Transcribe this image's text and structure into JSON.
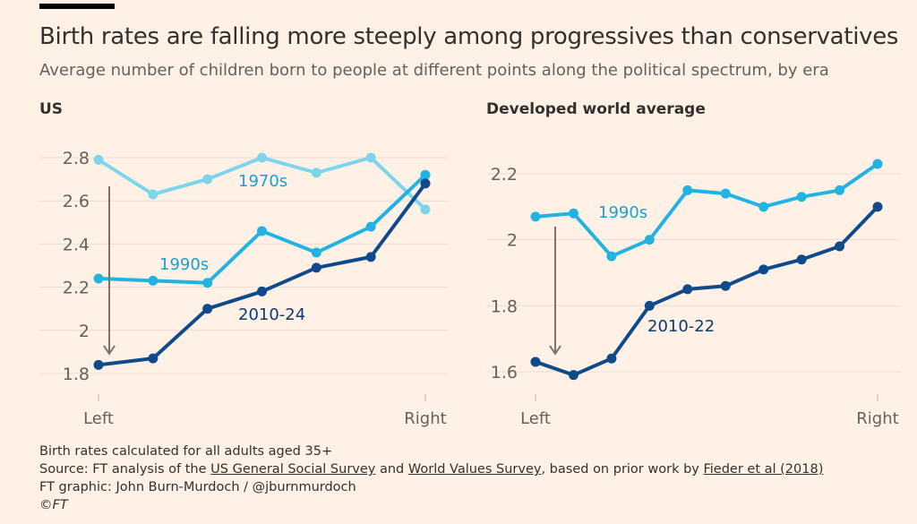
{
  "title": "Birth rates are falling more steeply among progressives than conservatives",
  "subtitle": "Average number of children born to people at different points along the political spectrum, by era",
  "colors": {
    "background": "#FFF1E5",
    "s1970s": "#7DD5EC",
    "s1990s": "#22B3E3",
    "s2010": "#0F4B8A",
    "arrow": "#7A716C",
    "grid": "#E9DDD3"
  },
  "chart_data": [
    {
      "type": "line",
      "title": "US",
      "x_tick_labels": [
        "Left",
        "Right"
      ],
      "y_ticks": [
        "1.8",
        "2",
        "2.2",
        "2.4",
        "2.6",
        "2.8"
      ],
      "ylim": [
        1.8,
        2.8
      ],
      "grid": true,
      "series": [
        {
          "name": "1970s",
          "values": [
            2.79,
            2.63,
            2.7,
            2.8,
            2.73,
            2.8,
            2.56
          ]
        },
        {
          "name": "1990s",
          "values": [
            2.24,
            2.23,
            2.22,
            2.46,
            2.36,
            2.48,
            2.72
          ]
        },
        {
          "name": "2010-24",
          "values": [
            1.84,
            1.87,
            2.1,
            2.18,
            2.29,
            2.34,
            2.68
          ]
        }
      ]
    },
    {
      "type": "line",
      "title": "Developed world average",
      "x_tick_labels": [
        "Left",
        "Right"
      ],
      "y_ticks": [
        "1.6",
        "1.8",
        "2",
        "2.2"
      ],
      "ylim": [
        1.6,
        2.2
      ],
      "grid": true,
      "series": [
        {
          "name": "1990s",
          "values": [
            2.07,
            2.08,
            1.95,
            2.0,
            2.15,
            2.14,
            2.1,
            2.13,
            2.15,
            2.23
          ]
        },
        {
          "name": "2010-22",
          "values": [
            1.63,
            1.59,
            1.64,
            1.8,
            1.85,
            1.86,
            1.91,
            1.94,
            1.98,
            2.1
          ]
        }
      ]
    }
  ],
  "footer": {
    "note": "Birth rates calculated for all adults aged 35+",
    "source_prefix": "Source: FT analysis of the ",
    "link1": "US General Social Survey",
    "mid1": " and ",
    "link2": "World Values Survey",
    "mid2": ", based on prior work by ",
    "link3": "Fieder et al (2018)",
    "graphic": "FT graphic: John Burn-Murdoch / @jburnmurdoch",
    "copyright": "©FT"
  }
}
